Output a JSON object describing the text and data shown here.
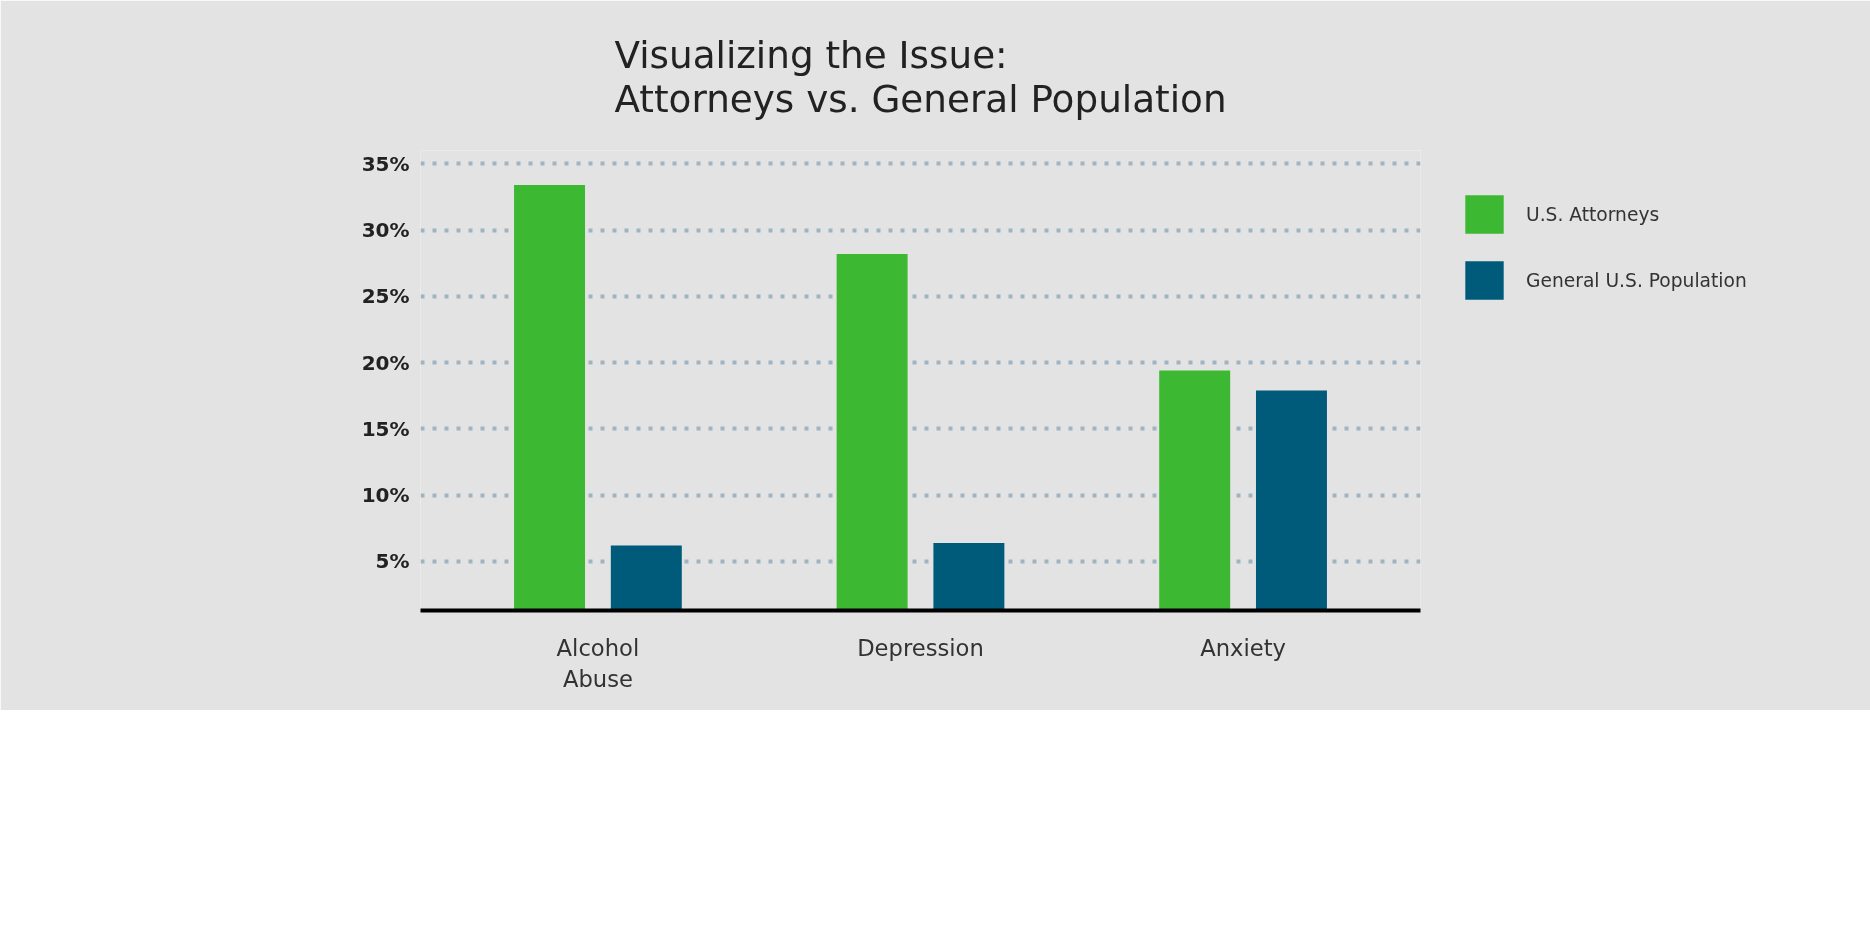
{
  "chart_data": {
    "type": "bar",
    "title": "Visualizing the Issue:\nAttorneys vs. General Population",
    "categories": [
      "Alcohol\nAbuse",
      "Depression",
      "Anxiety"
    ],
    "series": [
      {
        "name": "U.S. Attorneys",
        "color": "#3cb832",
        "values": [
          33.4,
          28.2,
          19.4
        ]
      },
      {
        "name": "General U.S. Population",
        "color": "#005b7a",
        "values": [
          6.2,
          6.4,
          17.9
        ]
      }
    ],
    "ylim": [
      1.3,
      36
    ],
    "yticks": [
      {
        "value": 5,
        "label": "5%"
      },
      {
        "value": 10,
        "label": "10%"
      },
      {
        "value": 15,
        "label": "15%"
      },
      {
        "value": 20,
        "label": "20%"
      },
      {
        "value": 25,
        "label": "25%"
      },
      {
        "value": 30,
        "label": "30%"
      },
      {
        "value": 35,
        "label": "35%"
      }
    ],
    "grid": "y",
    "legend": "top right"
  }
}
